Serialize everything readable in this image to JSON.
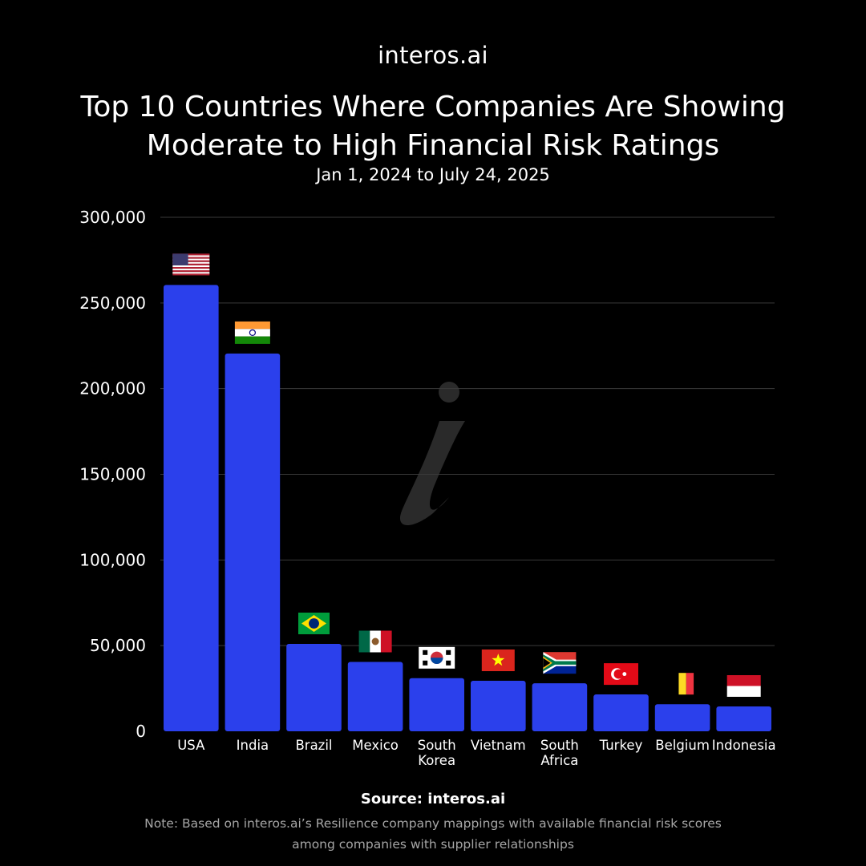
{
  "logo_text": "interos.ai",
  "header": {
    "title_line1": "Top 10 Countries Where Companies Are Showing",
    "title_line2": "Moderate to High Financial Risk Ratings",
    "subtitle": "Jan 1, 2024 to July 24, 2025"
  },
  "colors": {
    "background": "#000000",
    "bar": "#2b40ec",
    "grid": "#3a3a3a",
    "watermark": "#2a2a2a"
  },
  "chart_data": {
    "type": "bar",
    "categories": [
      "USA",
      "India",
      "Brazil",
      "Mexico",
      "South Korea",
      "Vietnam",
      "South Africa",
      "Turkey",
      "Belgium",
      "Indonesia"
    ],
    "category_lines": [
      [
        "USA"
      ],
      [
        "India"
      ],
      [
        "Brazil"
      ],
      [
        "Mexico"
      ],
      [
        "South",
        "Korea"
      ],
      [
        "Vietnam"
      ],
      [
        "South",
        "Africa"
      ],
      [
        "Turkey"
      ],
      [
        "Belgium"
      ],
      [
        "Indonesia"
      ]
    ],
    "values": [
      260500,
      220500,
      51000,
      40500,
      31000,
      29500,
      28000,
      21500,
      15800,
      14500
    ],
    "flags": [
      "us-flag-icon",
      "india-flag-icon",
      "brazil-flag-icon",
      "mexico-flag-icon",
      "south-korea-flag-icon",
      "vietnam-flag-icon",
      "south-africa-flag-icon",
      "turkey-flag-icon",
      "belgium-flag-icon",
      "indonesia-flag-icon"
    ],
    "yticks": [
      0,
      50000,
      100000,
      150000,
      200000,
      250000,
      300000
    ],
    "ytick_labels": [
      "0",
      "50,000",
      "100,000",
      "150,000",
      "200,000",
      "250,000",
      "300,000"
    ],
    "ylim": [
      0,
      300000
    ],
    "grid": true,
    "watermark": "i-logo-icon"
  },
  "footer": {
    "source": "Source: interos.ai",
    "note_line1": "Note: Based on interos.ai’s Resilience company mappings with available financial risk scores",
    "note_line2": "among companies with supplier relationships"
  }
}
